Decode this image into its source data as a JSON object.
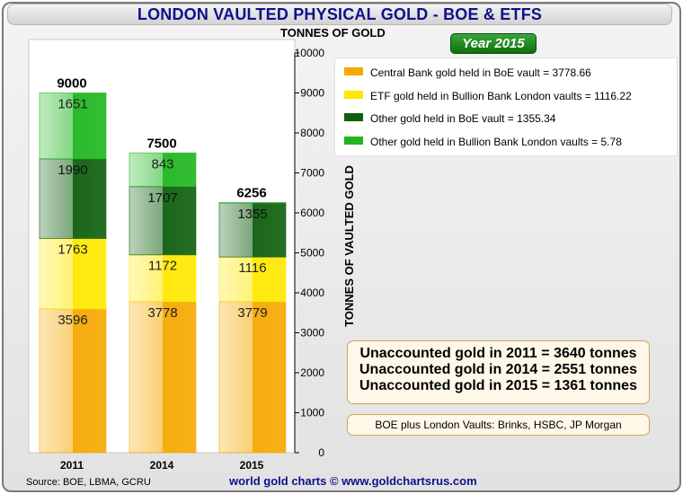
{
  "title": "LONDON VAULTED PHYSICAL GOLD - BOE & ETFS",
  "year_badge": "Year 2015",
  "chart_data": {
    "type": "bar",
    "stacked": true,
    "categories": [
      "2011",
      "2014",
      "2015"
    ],
    "totals": [
      9000,
      7500,
      6256
    ],
    "series": [
      {
        "key": "boe_central",
        "values": [
          3596,
          3778,
          3779
        ],
        "color": "#f5a800"
      },
      {
        "key": "etf",
        "values": [
          1763,
          1172,
          1116
        ],
        "color": "#ffe800"
      },
      {
        "key": "boe_other",
        "values": [
          1990,
          1707,
          1355
        ],
        "color": "#0e5e0e"
      },
      {
        "key": "bullion_other",
        "values": [
          1651,
          843,
          6
        ],
        "color": "#1fb61f"
      }
    ],
    "series_labels": [
      [
        "3596",
        "3778",
        "3779"
      ],
      [
        "1763",
        "1172",
        "1116"
      ],
      [
        "1990",
        "1707",
        "1355"
      ],
      [
        "1651",
        "843",
        ""
      ]
    ],
    "yaxis_title_top": "TONNES OF GOLD",
    "ylabel": "TONNES OF VAULTED GOLD",
    "ylim": [
      0,
      10000
    ],
    "yticks": [
      0,
      1000,
      2000,
      3000,
      4000,
      5000,
      6000,
      7000,
      8000,
      9000,
      10000
    ],
    "legend": [
      {
        "label": "Central Bank gold held in BoE vault = 3778.66",
        "color": "#f5a800"
      },
      {
        "label": "ETF gold held in Bullion Bank London vaults = 1116.22",
        "color": "#ffe800"
      },
      {
        "label": "Other gold held in BoE vault = 1355.34",
        "color": "#0e5e0e"
      },
      {
        "label": "Other gold held in Bullion Bank London vaults = 5.78",
        "color": "#1fb61f"
      }
    ],
    "grid": false
  },
  "notes": [
    "Unaccounted gold in 2011 = 3640 tonnes",
    "Unaccounted gold in 2014 = 2551 tonnes",
    "Unaccounted gold in 2015 = 1361 tonnes"
  ],
  "vault_note": "BOE plus London Vaults: Brinks, HSBC, JP Morgan",
  "source": "Source: BOE, LBMA, GCRU",
  "credit": "world gold charts © www.goldchartsrus.com"
}
